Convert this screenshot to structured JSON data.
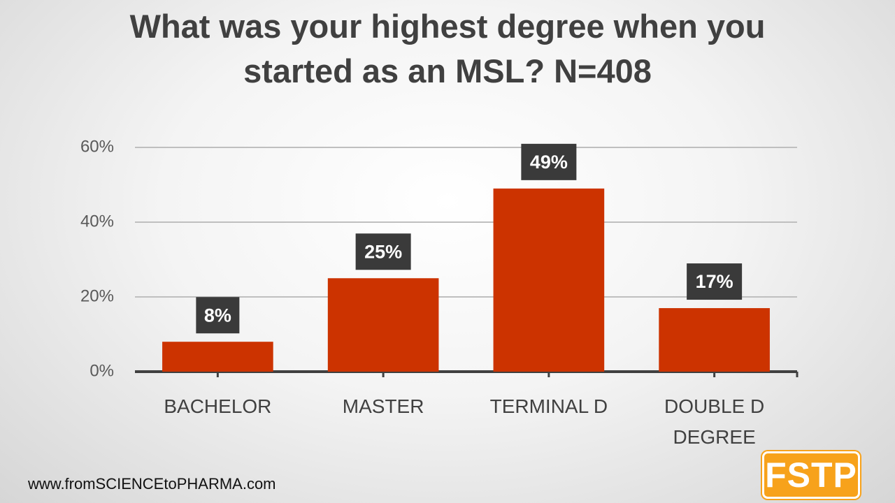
{
  "chart_data": {
    "type": "bar",
    "title": "What was your highest degree when you started as an MSL? N=408",
    "categories": [
      "BACHELOR",
      "MASTER",
      "TERMINAL D",
      "DOUBLE D DEGREE"
    ],
    "values": [
      8,
      25,
      49,
      17
    ],
    "value_labels": [
      "8%",
      "25%",
      "49%",
      "17%"
    ],
    "color": "#cc3300",
    "ylim": [
      0,
      60
    ],
    "yticks": [
      {
        "value": 0,
        "label": "0%"
      },
      {
        "value": 20,
        "label": "20%"
      },
      {
        "value": 40,
        "label": "40%"
      },
      {
        "value": 60,
        "label": "60%"
      }
    ],
    "grid": true
  },
  "footer": "www.fromSCIENCEtoPHARMA.com",
  "logo": "FSTP"
}
